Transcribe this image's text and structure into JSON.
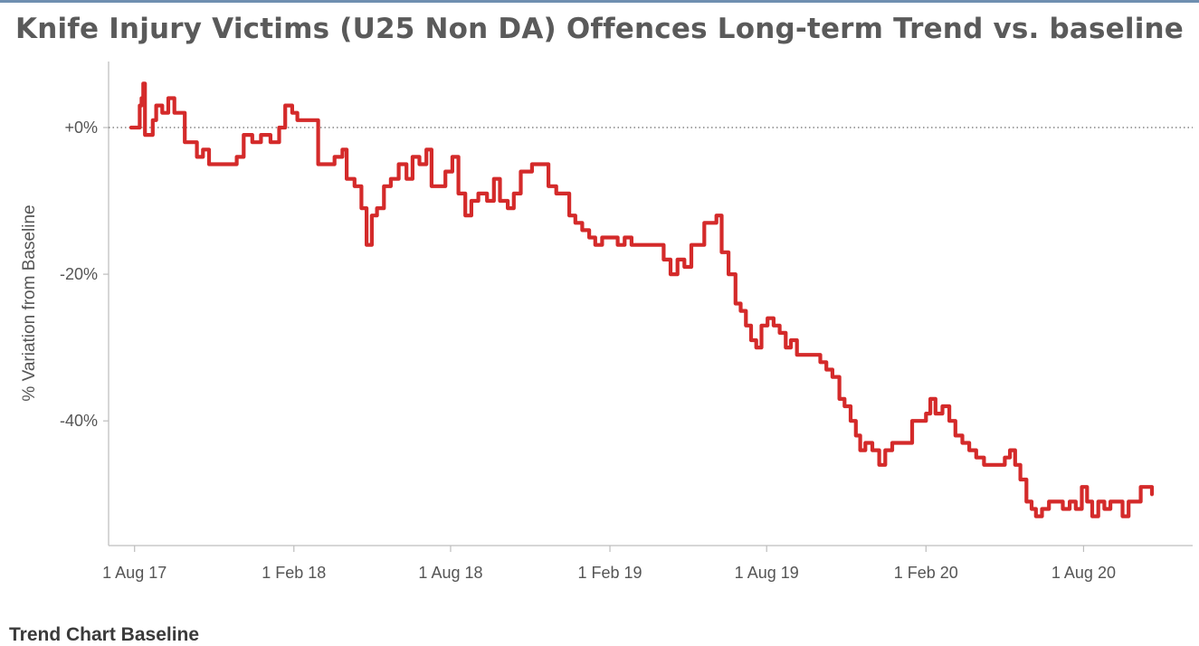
{
  "chart_data": {
    "type": "line",
    "title": "Knife Injury Victims (U25 Non DA) Offences Long-term Trend vs. baseline",
    "ylabel": "% Variation from Baseline",
    "xlabel": "",
    "x_range": [
      "2017-07-02",
      "2020-12-05"
    ],
    "ylim": [
      -57,
      9
    ],
    "y_ticks": [
      0,
      -20,
      -40
    ],
    "y_tick_labels": [
      "+0%",
      "-20%",
      "-40%"
    ],
    "x_ticks": [
      "2017-08-01",
      "2018-02-01",
      "2018-08-01",
      "2019-02-01",
      "2019-08-01",
      "2020-02-01",
      "2020-08-01"
    ],
    "x_tick_labels": [
      "1 Aug 17",
      "1 Feb 18",
      "1 Aug 18",
      "1 Feb 19",
      "1 Aug 19",
      "1 Feb 20",
      "1 Aug 20"
    ],
    "baseline": 0,
    "grid": false,
    "series_color": "#d42a2a",
    "series": [
      {
        "name": "",
        "points": [
          [
            "2017-07-28",
            0
          ],
          [
            "2017-08-04",
            0
          ],
          [
            "2017-08-07",
            3
          ],
          [
            "2017-08-09",
            4
          ],
          [
            "2017-08-11",
            6
          ],
          [
            "2017-08-13",
            -1
          ],
          [
            "2017-08-16",
            -1
          ],
          [
            "2017-08-19",
            -1
          ],
          [
            "2017-08-22",
            1
          ],
          [
            "2017-08-26",
            3
          ],
          [
            "2017-09-02",
            2
          ],
          [
            "2017-09-09",
            4
          ],
          [
            "2017-09-16",
            2
          ],
          [
            "2017-09-23",
            2
          ],
          [
            "2017-09-28",
            -2
          ],
          [
            "2017-10-05",
            -2
          ],
          [
            "2017-10-12",
            -4
          ],
          [
            "2017-10-19",
            -3
          ],
          [
            "2017-10-26",
            -5
          ],
          [
            "2017-11-05",
            -5
          ],
          [
            "2017-11-16",
            -5
          ],
          [
            "2017-11-27",
            -4
          ],
          [
            "2017-12-05",
            -1
          ],
          [
            "2017-12-15",
            -2
          ],
          [
            "2017-12-25",
            -1
          ],
          [
            "2018-01-05",
            -2
          ],
          [
            "2018-01-15",
            0
          ],
          [
            "2018-01-22",
            3
          ],
          [
            "2018-01-30",
            2
          ],
          [
            "2018-02-05",
            1
          ],
          [
            "2018-02-15",
            1
          ],
          [
            "2018-02-24",
            1
          ],
          [
            "2018-03-01",
            -5
          ],
          [
            "2018-03-10",
            -5
          ],
          [
            "2018-03-20",
            -4
          ],
          [
            "2018-03-29",
            -3
          ],
          [
            "2018-04-03",
            -7
          ],
          [
            "2018-04-12",
            -8
          ],
          [
            "2018-04-20",
            -11
          ],
          [
            "2018-04-26",
            -16
          ],
          [
            "2018-05-02",
            -12
          ],
          [
            "2018-05-08",
            -11
          ],
          [
            "2018-05-16",
            -8
          ],
          [
            "2018-05-24",
            -7
          ],
          [
            "2018-06-02",
            -5
          ],
          [
            "2018-06-11",
            -7
          ],
          [
            "2018-06-18",
            -4
          ],
          [
            "2018-06-26",
            -5
          ],
          [
            "2018-07-04",
            -3
          ],
          [
            "2018-07-10",
            -8
          ],
          [
            "2018-07-18",
            -8
          ],
          [
            "2018-07-26",
            -6
          ],
          [
            "2018-08-03",
            -4
          ],
          [
            "2018-08-10",
            -9
          ],
          [
            "2018-08-18",
            -12
          ],
          [
            "2018-08-25",
            -10
          ],
          [
            "2018-09-02",
            -9
          ],
          [
            "2018-09-12",
            -10
          ],
          [
            "2018-09-20",
            -7
          ],
          [
            "2018-09-27",
            -10
          ],
          [
            "2018-10-06",
            -11
          ],
          [
            "2018-10-13",
            -9
          ],
          [
            "2018-10-21",
            -6
          ],
          [
            "2018-11-03",
            -5
          ],
          [
            "2018-11-14",
            -5
          ],
          [
            "2018-11-22",
            -8
          ],
          [
            "2018-12-01",
            -9
          ],
          [
            "2018-12-09",
            -9
          ],
          [
            "2018-12-16",
            -12
          ],
          [
            "2018-12-23",
            -13
          ],
          [
            "2018-12-31",
            -14
          ],
          [
            "2019-01-08",
            -15
          ],
          [
            "2019-01-15",
            -16
          ],
          [
            "2019-01-23",
            -15
          ],
          [
            "2019-02-01",
            -15
          ],
          [
            "2019-02-10",
            -16
          ],
          [
            "2019-02-18",
            -15
          ],
          [
            "2019-02-26",
            -16
          ],
          [
            "2019-03-07",
            -16
          ],
          [
            "2019-03-18",
            -16
          ],
          [
            "2019-03-26",
            -16
          ],
          [
            "2019-04-04",
            -18
          ],
          [
            "2019-04-12",
            -20
          ],
          [
            "2019-04-20",
            -18
          ],
          [
            "2019-04-28",
            -19
          ],
          [
            "2019-05-06",
            -16
          ],
          [
            "2019-05-14",
            -16
          ],
          [
            "2019-05-21",
            -13
          ],
          [
            "2019-05-28",
            -13
          ],
          [
            "2019-06-04",
            -12
          ],
          [
            "2019-06-10",
            -17
          ],
          [
            "2019-06-18",
            -20
          ],
          [
            "2019-06-26",
            -24
          ],
          [
            "2019-07-02",
            -25
          ],
          [
            "2019-07-08",
            -27
          ],
          [
            "2019-07-14",
            -29
          ],
          [
            "2019-07-20",
            -30
          ],
          [
            "2019-07-26",
            -27
          ],
          [
            "2019-08-02",
            -26
          ],
          [
            "2019-08-09",
            -27
          ],
          [
            "2019-08-16",
            -28
          ],
          [
            "2019-08-23",
            -30
          ],
          [
            "2019-08-29",
            -29
          ],
          [
            "2019-09-05",
            -31
          ],
          [
            "2019-09-14",
            -31
          ],
          [
            "2019-09-23",
            -31
          ],
          [
            "2019-10-02",
            -32
          ],
          [
            "2019-10-09",
            -33
          ],
          [
            "2019-10-16",
            -34
          ],
          [
            "2019-10-24",
            -37
          ],
          [
            "2019-10-30",
            -38
          ],
          [
            "2019-11-06",
            -40
          ],
          [
            "2019-11-12",
            -42
          ],
          [
            "2019-11-17",
            -44
          ],
          [
            "2019-11-23",
            -43
          ],
          [
            "2019-12-01",
            -44
          ],
          [
            "2019-12-09",
            -46
          ],
          [
            "2019-12-16",
            -44
          ],
          [
            "2019-12-24",
            -43
          ],
          [
            "2020-01-01",
            -43
          ],
          [
            "2020-01-08",
            -43
          ],
          [
            "2020-01-16",
            -40
          ],
          [
            "2020-01-24",
            -40
          ],
          [
            "2020-02-01",
            -39
          ],
          [
            "2020-02-06",
            -37
          ],
          [
            "2020-02-12",
            -39
          ],
          [
            "2020-02-20",
            -38
          ],
          [
            "2020-02-28",
            -40
          ],
          [
            "2020-03-06",
            -42
          ],
          [
            "2020-03-14",
            -43
          ],
          [
            "2020-03-22",
            -44
          ],
          [
            "2020-03-30",
            -45
          ],
          [
            "2020-04-08",
            -46
          ],
          [
            "2020-04-17",
            -46
          ],
          [
            "2020-04-25",
            -46
          ],
          [
            "2020-05-02",
            -45
          ],
          [
            "2020-05-08",
            -44
          ],
          [
            "2020-05-14",
            -46
          ],
          [
            "2020-05-20",
            -48
          ],
          [
            "2020-05-27",
            -51
          ],
          [
            "2020-06-02",
            -52
          ],
          [
            "2020-06-07",
            -53
          ],
          [
            "2020-06-14",
            -52
          ],
          [
            "2020-06-22",
            -51
          ],
          [
            "2020-06-30",
            -51
          ],
          [
            "2020-07-08",
            -52
          ],
          [
            "2020-07-16",
            -51
          ],
          [
            "2020-07-23",
            -52
          ],
          [
            "2020-07-30",
            -49
          ],
          [
            "2020-08-05",
            -51
          ],
          [
            "2020-08-11",
            -53
          ],
          [
            "2020-08-18",
            -51
          ],
          [
            "2020-08-25",
            -52
          ],
          [
            "2020-09-01",
            -51
          ],
          [
            "2020-09-08",
            -51
          ],
          [
            "2020-09-15",
            -53
          ],
          [
            "2020-09-22",
            -51
          ],
          [
            "2020-09-29",
            -51
          ],
          [
            "2020-10-06",
            -49
          ],
          [
            "2020-10-13",
            -49
          ],
          [
            "2020-10-19",
            -50
          ]
        ]
      }
    ]
  },
  "footer": {
    "section_label": "Trend Chart Baseline"
  }
}
